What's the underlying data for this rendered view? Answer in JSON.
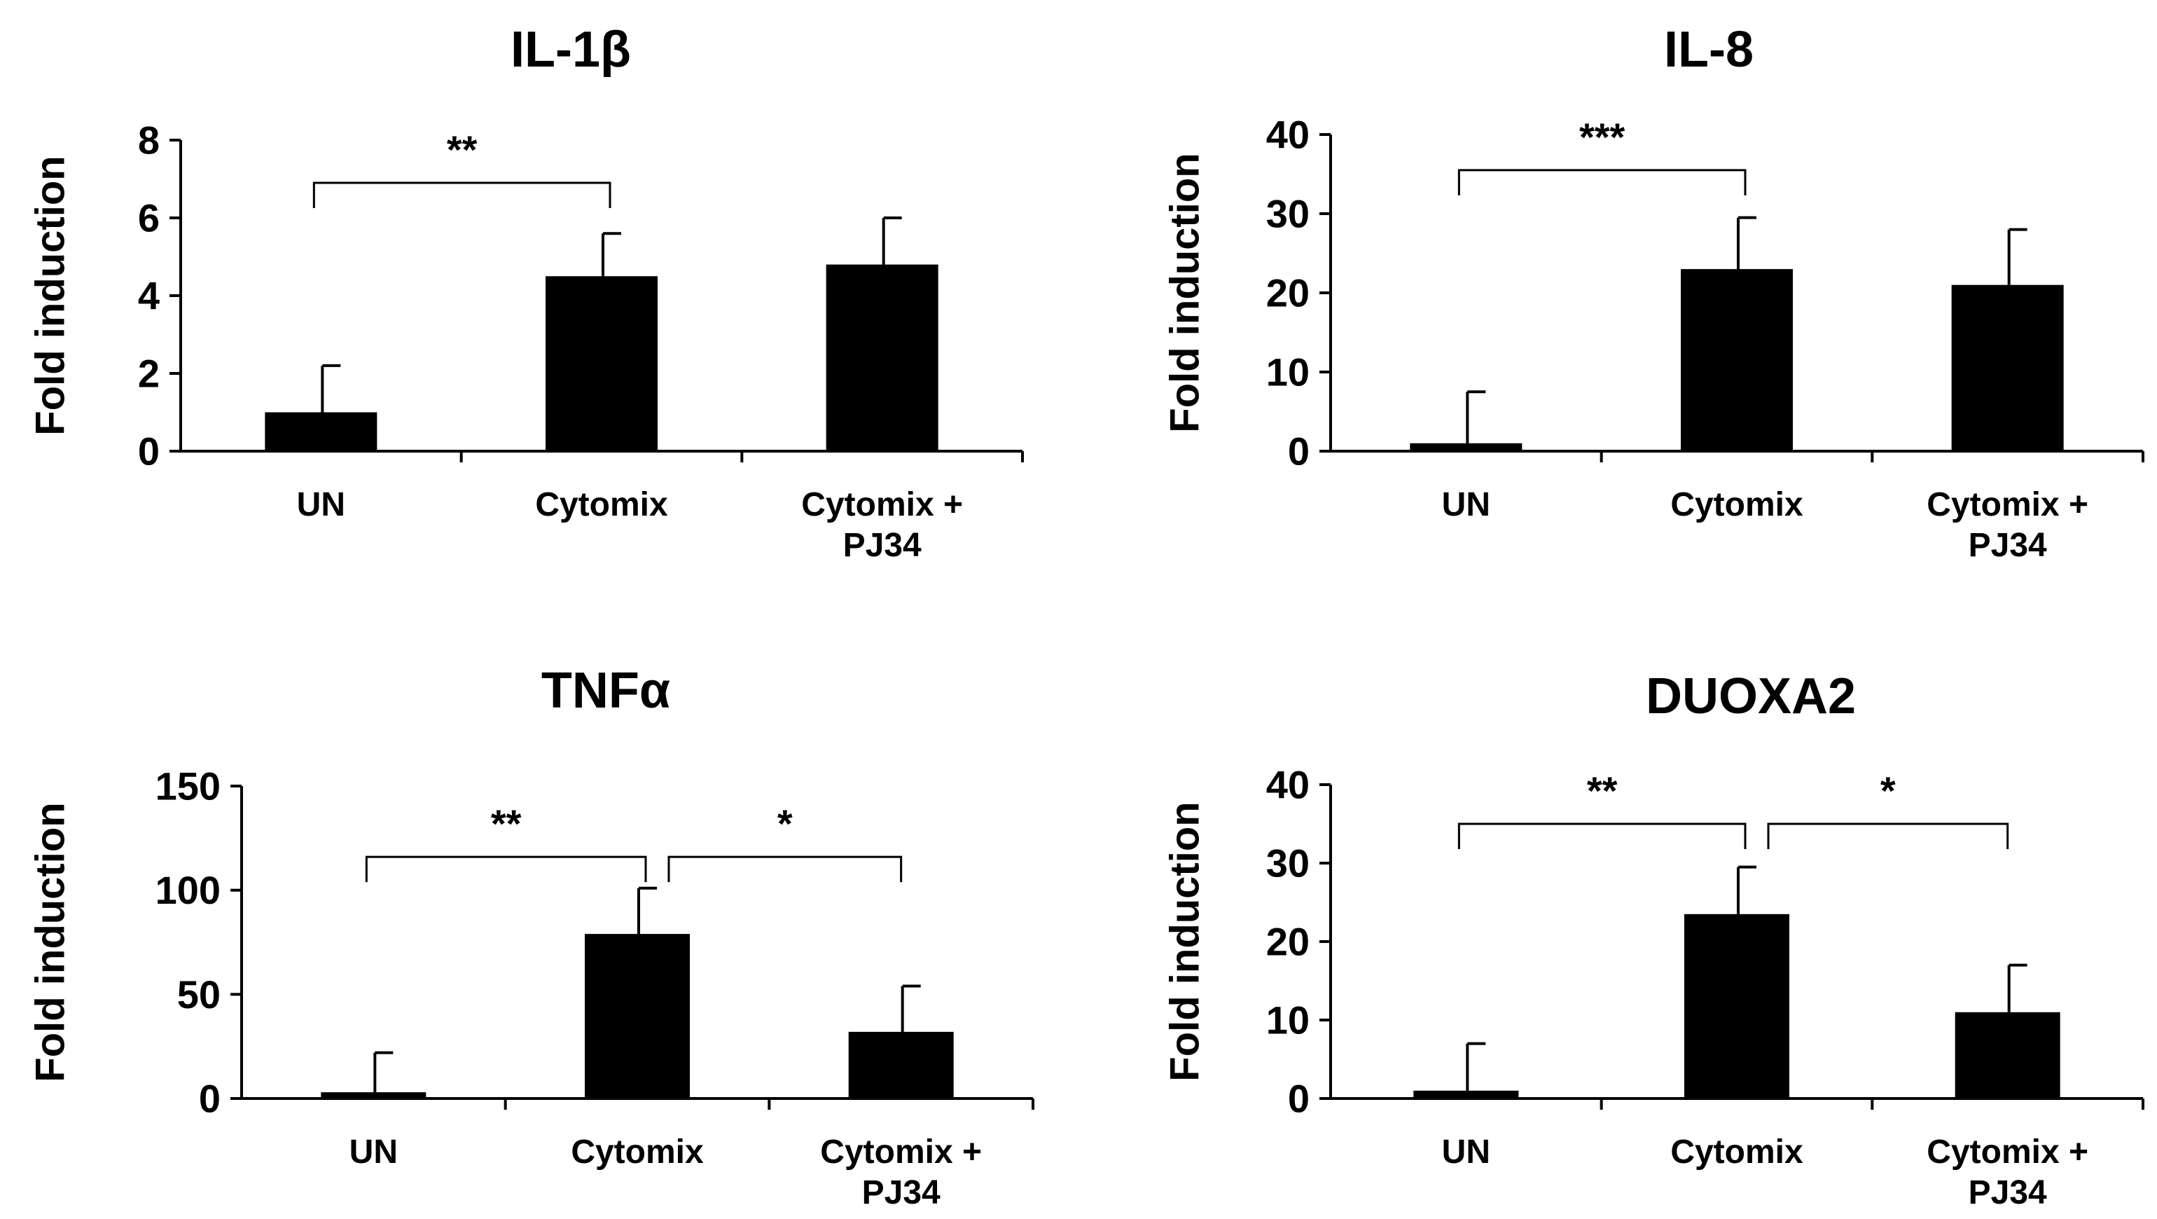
{
  "chart_data": [
    {
      "type": "bar",
      "title": "IL-1β",
      "ylabel": "Fold induction",
      "xlabel": "",
      "categories": [
        [
          "UN"
        ],
        [
          "Cytomix"
        ],
        [
          "Cytomix +",
          "PJ34"
        ]
      ],
      "values": [
        1.0,
        4.5,
        4.8
      ],
      "errors": [
        1.2,
        1.1,
        1.2
      ],
      "ylim": [
        0,
        8
      ],
      "yticks": [
        "0",
        "2",
        "4",
        "6",
        "8"
      ],
      "ytick_values": [
        0,
        2,
        4,
        6,
        8
      ],
      "significance": [
        {
          "from": 0,
          "to": 1,
          "label": "**",
          "level": 6.9
        }
      ]
    },
    {
      "type": "bar",
      "title": "IL-8",
      "ylabel": "Fold induction",
      "xlabel": "",
      "categories": [
        [
          "UN"
        ],
        [
          "Cytomix"
        ],
        [
          "Cytomix +",
          "PJ34"
        ]
      ],
      "values": [
        1.0,
        23.0,
        21.0
      ],
      "errors": [
        6.5,
        6.5,
        7.0
      ],
      "ylim": [
        0,
        40
      ],
      "yticks": [
        "0",
        "10",
        "20",
        "30",
        "40"
      ],
      "ytick_values": [
        0,
        10,
        20,
        30,
        40
      ],
      "significance": [
        {
          "from": 0,
          "to": 1,
          "label": "***",
          "level": 35.5
        }
      ]
    },
    {
      "type": "bar",
      "title": "TNFα",
      "ylabel": "Fold induction",
      "xlabel": "",
      "categories": [
        [
          "UN"
        ],
        [
          "Cytomix"
        ],
        [
          "Cytomix +",
          "PJ34"
        ]
      ],
      "values": [
        3.0,
        79.0,
        32.0
      ],
      "errors": [
        19.0,
        22.0,
        22.0
      ],
      "ylim": [
        0,
        150
      ],
      "yticks": [
        "0",
        "50",
        "100",
        "150"
      ],
      "ytick_values": [
        0,
        50,
        100,
        150
      ],
      "significance": [
        {
          "from": 0,
          "to": 1,
          "label": "**",
          "level": 116
        },
        {
          "from": 1,
          "to": 2,
          "label": "*",
          "level": 116
        }
      ]
    },
    {
      "type": "bar",
      "title": "DUOXA2",
      "ylabel": "Fold induction",
      "xlabel": "",
      "categories": [
        [
          "UN"
        ],
        [
          "Cytomix"
        ],
        [
          "Cytomix +",
          "PJ34"
        ]
      ],
      "values": [
        1.0,
        23.5,
        11.0
      ],
      "errors": [
        6.0,
        6.0,
        6.0
      ],
      "ylim": [
        0,
        40
      ],
      "yticks": [
        "0",
        "10",
        "20",
        "30",
        "40"
      ],
      "ytick_values": [
        0,
        10,
        20,
        30,
        40
      ],
      "significance": [
        {
          "from": 0,
          "to": 1,
          "label": "**",
          "level": 35
        },
        {
          "from": 1,
          "to": 2,
          "label": "*",
          "level": 35
        }
      ]
    }
  ]
}
